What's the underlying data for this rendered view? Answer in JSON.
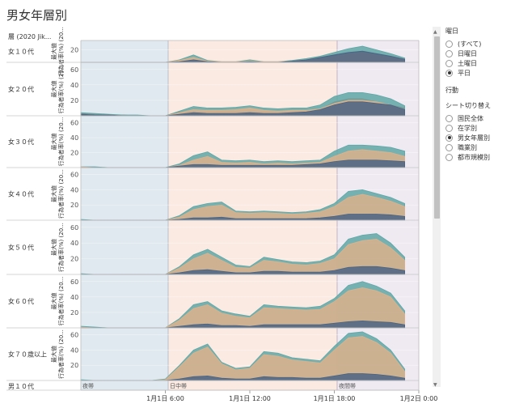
{
  "title": "男女年層別",
  "row_header": "層 (2020 Jik...",
  "legend": {
    "day_title": "曜日",
    "day_options": [
      {
        "label": "(すべて)",
        "selected": false
      },
      {
        "label": "日曜日",
        "selected": false
      },
      {
        "label": "土曜日",
        "selected": false
      },
      {
        "label": "平日",
        "selected": true
      }
    ],
    "action_title": "行動",
    "sheet_title": "シート切り替え",
    "sheet_options": [
      {
        "label": "国民全体",
        "selected": false
      },
      {
        "label": "在学別",
        "selected": false
      },
      {
        "label": "男女年層別",
        "selected": true
      },
      {
        "label": "職業別",
        "selected": false
      },
      {
        "label": "都市規模別",
        "selected": false
      }
    ]
  },
  "colors": {
    "night": "#dfe9ef",
    "day": "#faeae2",
    "evening": "#efe9f2",
    "teal": "#5fa7a6",
    "tan": "#dcb28c",
    "navy": "#4a6484",
    "red": "#d9534f"
  },
  "chart_data": {
    "type": "area",
    "x_ticks": [
      "1月1日 6:00",
      "1月1日 12:00",
      "1月1日 18:00",
      "1月2日 0:00"
    ],
    "bands": [
      "夜帯",
      "日中帯",
      "夜間帯"
    ],
    "y_axis_label": "行為者率(%) (20...",
    "y_axis_label2": "最大値",
    "ylim": [
      0,
      65
    ],
    "y_ticks": [
      20,
      40,
      60
    ],
    "x": [
      "0:00",
      "1:00",
      "2:00",
      "3:00",
      "4:00",
      "5:00",
      "6:00",
      "7:00",
      "8:00",
      "9:00",
      "10:00",
      "11:00",
      "12:00",
      "13:00",
      "14:00",
      "15:00",
      "16:00",
      "17:00",
      "18:00",
      "19:00",
      "20:00",
      "21:00",
      "22:00",
      "23:00"
    ],
    "panels": [
      {
        "label": "女１０代",
        "ylim": [
          0,
          30
        ],
        "y_ticks": [
          20
        ],
        "series": [
          {
            "color": "teal",
            "values": [
              0,
              0,
              0,
              0,
              0,
              0,
              0,
              4,
              12,
              3,
              1,
              1,
              4,
              1,
              1,
              3,
              6,
              10,
              16,
              22,
              26,
              20,
              14,
              7
            ]
          },
          {
            "color": "tan",
            "values": [
              0,
              0,
              0,
              0,
              0,
              0,
              0,
              3,
              8,
              2,
              1,
              1,
              2,
              1,
              1,
              2,
              4,
              6,
              10,
              14,
              16,
              12,
              8,
              4
            ]
          },
          {
            "color": "navy",
            "values": [
              0,
              0,
              0,
              0,
              0,
              0,
              0,
              1,
              4,
              1,
              0,
              0,
              1,
              0,
              0,
              2,
              4,
              8,
              12,
              16,
              18,
              14,
              10,
              5
            ]
          }
        ]
      },
      {
        "label": "女２０代",
        "series": [
          {
            "color": "red",
            "values": [
              3,
              2,
              1,
              1,
              0,
              0,
              0,
              5,
              6,
              4,
              5,
              5,
              6,
              5,
              5,
              5,
              6,
              8,
              18,
              22,
              22,
              18,
              14,
              10
            ]
          },
          {
            "color": "teal",
            "values": [
              4,
              3,
              2,
              1,
              1,
              0,
              0,
              6,
              12,
              10,
              10,
              11,
              13,
              10,
              9,
              10,
              10,
              14,
              25,
              30,
              30,
              27,
              22,
              13
            ]
          },
          {
            "color": "tan",
            "values": [
              2,
              1,
              1,
              0,
              0,
              0,
              0,
              4,
              8,
              7,
              7,
              8,
              10,
              7,
              6,
              7,
              7,
              9,
              16,
              20,
              20,
              18,
              14,
              8
            ]
          },
          {
            "color": "navy",
            "values": [
              2,
              1,
              1,
              0,
              0,
              0,
              0,
              2,
              4,
              3,
              3,
              3,
              4,
              3,
              3,
              4,
              5,
              8,
              14,
              18,
              18,
              16,
              14,
              8
            ]
          }
        ]
      },
      {
        "label": "女３０代",
        "series": [
          {
            "color": "teal",
            "values": [
              1,
              1,
              0,
              0,
              0,
              0,
              0,
              5,
              16,
              21,
              10,
              9,
              10,
              8,
              9,
              8,
              9,
              10,
              22,
              30,
              30,
              29,
              27,
              22
            ]
          },
          {
            "color": "tan",
            "values": [
              1,
              0,
              0,
              0,
              0,
              0,
              0,
              3,
              10,
              15,
              7,
              6,
              7,
              5,
              6,
              5,
              6,
              7,
              15,
              22,
              24,
              22,
              20,
              15
            ]
          },
          {
            "color": "navy",
            "values": [
              0,
              0,
              0,
              0,
              0,
              0,
              0,
              2,
              4,
              4,
              3,
              3,
              3,
              3,
              3,
              3,
              4,
              5,
              8,
              10,
              10,
              10,
              9,
              8
            ]
          }
        ]
      },
      {
        "label": "女４０代",
        "series": [
          {
            "color": "teal",
            "values": [
              1,
              0,
              0,
              0,
              0,
              0,
              0,
              6,
              18,
              22,
              24,
              12,
              11,
              12,
              11,
              10,
              11,
              14,
              22,
              38,
              40,
              35,
              30,
              22
            ]
          },
          {
            "color": "tan",
            "values": [
              0,
              0,
              0,
              0,
              0,
              0,
              0,
              4,
              14,
              18,
              20,
              10,
              9,
              10,
              9,
              8,
              9,
              11,
              18,
              30,
              34,
              30,
              25,
              18
            ]
          },
          {
            "color": "navy",
            "values": [
              0,
              0,
              0,
              0,
              0,
              0,
              0,
              1,
              3,
              3,
              4,
              2,
              2,
              2,
              2,
              2,
              2,
              3,
              5,
              8,
              8,
              8,
              7,
              5
            ]
          }
        ]
      },
      {
        "label": "女５０代",
        "series": [
          {
            "color": "teal",
            "values": [
              1,
              0,
              0,
              0,
              0,
              0,
              0,
              10,
              25,
              32,
              22,
              12,
              10,
              22,
              19,
              16,
              15,
              17,
              25,
              45,
              50,
              52,
              40,
              22
            ]
          },
          {
            "color": "tan",
            "values": [
              0,
              0,
              0,
              0,
              0,
              0,
              0,
              8,
              20,
              27,
              18,
              9,
              8,
              18,
              16,
              13,
              12,
              14,
              20,
              38,
              43,
              45,
              34,
              18
            ]
          },
          {
            "color": "navy",
            "values": [
              0,
              0,
              0,
              0,
              0,
              0,
              0,
              2,
              5,
              6,
              4,
              2,
              2,
              4,
              4,
              3,
              3,
              3,
              5,
              9,
              10,
              10,
              8,
              5
            ]
          }
        ]
      },
      {
        "label": "女６０代",
        "series": [
          {
            "color": "teal",
            "values": [
              2,
              1,
              0,
              0,
              0,
              0,
              0,
              12,
              30,
              34,
              22,
              18,
              15,
              30,
              28,
              27,
              26,
              28,
              38,
              55,
              60,
              54,
              45,
              22
            ]
          },
          {
            "color": "tan",
            "values": [
              1,
              0,
              0,
              0,
              0,
              0,
              0,
              10,
              25,
              30,
              19,
              15,
              13,
              26,
              25,
              24,
              23,
              24,
              34,
              48,
              52,
              48,
              40,
              18
            ]
          },
          {
            "color": "navy",
            "values": [
              0,
              0,
              0,
              0,
              0,
              0,
              0,
              2,
              4,
              5,
              3,
              3,
              2,
              4,
              4,
              4,
              4,
              4,
              6,
              8,
              9,
              8,
              7,
              4
            ]
          }
        ]
      },
      {
        "label": "女７０歳以上",
        "series": [
          {
            "color": "teal",
            "values": [
              1,
              0,
              0,
              0,
              0,
              0,
              2,
              20,
              40,
              48,
              24,
              16,
              18,
              38,
              36,
              30,
              28,
              26,
              45,
              62,
              64,
              55,
              40,
              15
            ]
          },
          {
            "color": "tan",
            "values": [
              0,
              0,
              0,
              0,
              0,
              0,
              1,
              18,
              36,
              44,
              22,
              14,
              16,
              34,
              32,
              27,
              25,
              23,
              40,
              56,
              58,
              50,
              36,
              12
            ]
          },
          {
            "color": "navy",
            "values": [
              0,
              0,
              0,
              0,
              0,
              0,
              0,
              2,
              5,
              6,
              3,
              2,
              2,
              5,
              4,
              4,
              3,
              3,
              6,
              9,
              9,
              8,
              6,
              3
            ]
          }
        ]
      },
      {
        "label": "男１０代",
        "partial": true,
        "series": []
      }
    ]
  }
}
